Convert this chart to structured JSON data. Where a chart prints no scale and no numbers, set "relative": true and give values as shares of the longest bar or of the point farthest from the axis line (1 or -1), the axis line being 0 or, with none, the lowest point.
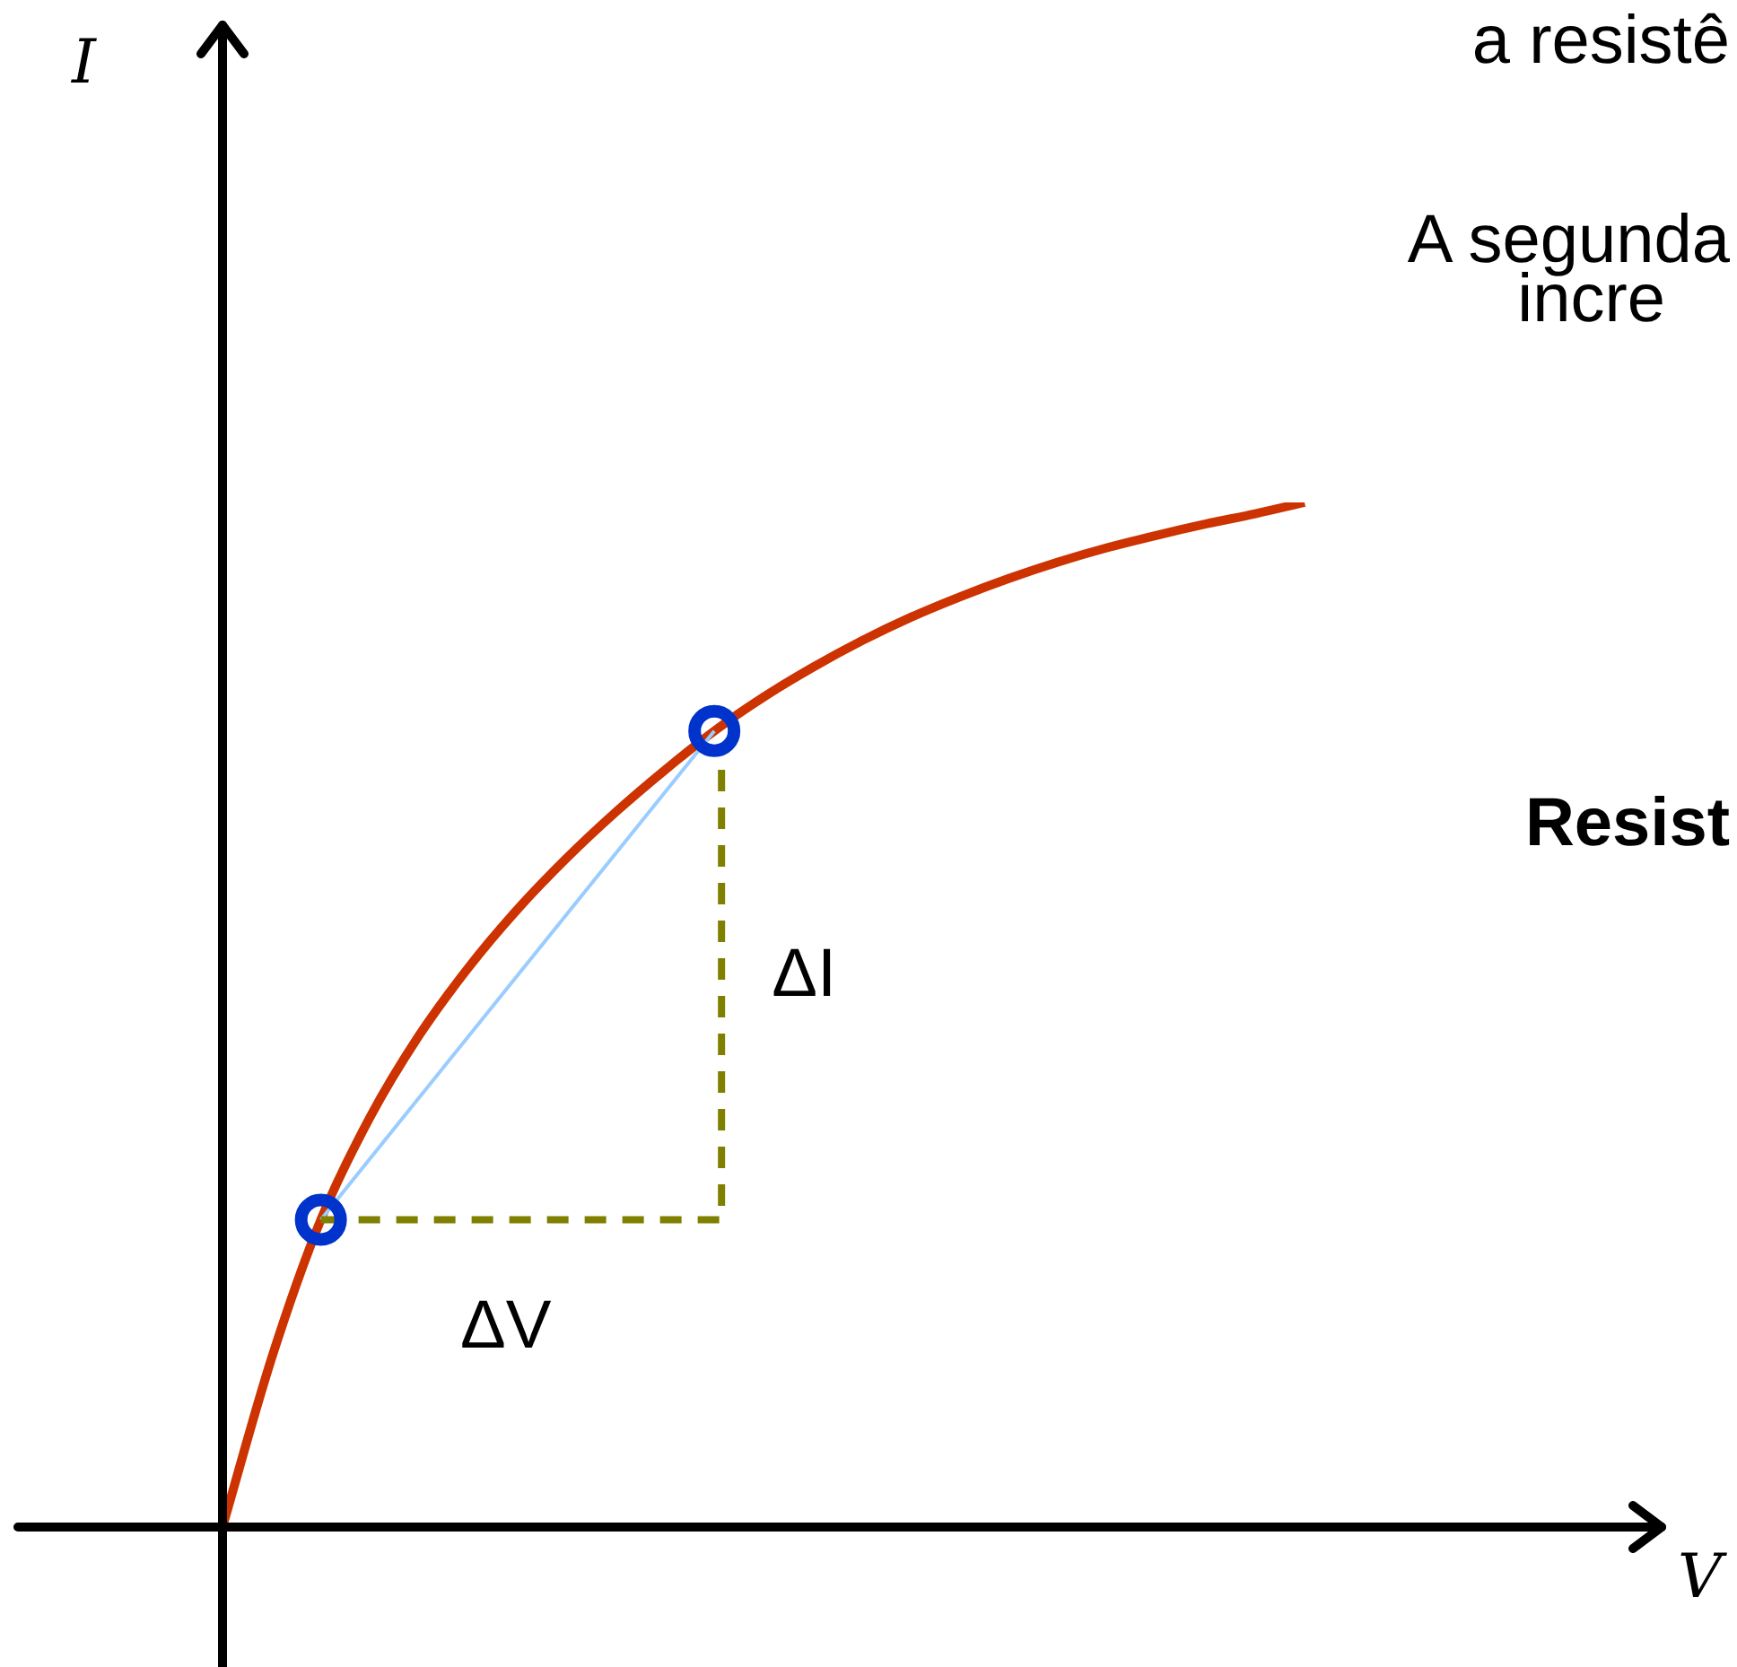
{
  "chart_data": {
    "type": "line",
    "relative": true,
    "categories": [
      null,
      null,
      null,
      null,
      null,
      null,
      null,
      null,
      null,
      null,
      null,
      null,
      null,
      null,
      null,
      null,
      null,
      null,
      null,
      null,
      null,
      null,
      null
    ],
    "series": [
      {
        "color": "#cc3300",
        "values": [
          0,
          0.165,
          0.3,
          0.4,
          0.48,
          0.546,
          0.603,
          0.653,
          0.698,
          0.739,
          0.777,
          0.81,
          0.839,
          0.865,
          0.888,
          0.908,
          0.926,
          0.942,
          0.956,
          0.968,
          0.979,
          0.989,
          1
        ]
      }
    ],
    "annotations": [
      "ΔV",
      "ΔI",
      "a resistê",
      "A segunda",
      "incre",
      "Resist",
      "I",
      "V"
    ]
  }
}
